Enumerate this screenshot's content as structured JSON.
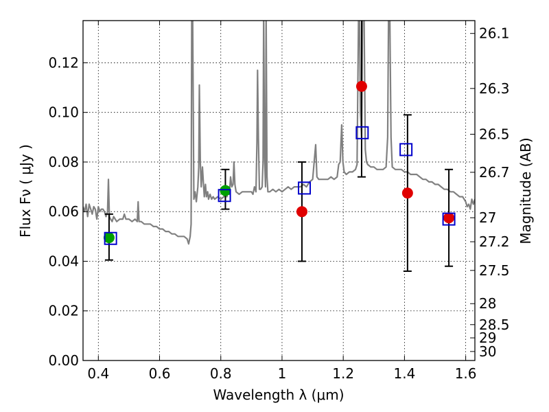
{
  "chart_data": {
    "type": "scatter",
    "xlabel": "Wavelength  λ (μm)",
    "ylabel": "Flux  Fν  ( μJy )",
    "ylabel_right": "Magnitude (AB)",
    "xlim": [
      0.35,
      1.63
    ],
    "ylim": [
      0.0,
      0.137
    ],
    "grid": true,
    "x_ticks": [
      {
        "value": 0.4,
        "label": "0.4"
      },
      {
        "value": 0.6,
        "label": "0.6"
      },
      {
        "value": 0.8,
        "label": "0.8"
      },
      {
        "value": 1.0,
        "label": "1"
      },
      {
        "value": 1.2,
        "label": "1.2"
      },
      {
        "value": 1.4,
        "label": "1.4"
      },
      {
        "value": 1.6,
        "label": "1.6"
      }
    ],
    "y_ticks": [
      {
        "value": 0.0,
        "label": "0.00"
      },
      {
        "value": 0.02,
        "label": "0.02"
      },
      {
        "value": 0.04,
        "label": "0.04"
      },
      {
        "value": 0.06,
        "label": "0.06"
      },
      {
        "value": 0.08,
        "label": "0.08"
      },
      {
        "value": 0.1,
        "label": "0.10"
      },
      {
        "value": 0.12,
        "label": "0.12"
      }
    ],
    "mag_ticks": [
      {
        "value": 26.1,
        "label": "26.1"
      },
      {
        "value": 26.3,
        "label": "26.3"
      },
      {
        "value": 26.5,
        "label": "26.5"
      },
      {
        "value": 26.7,
        "label": "26.7"
      },
      {
        "value": 27.0,
        "label": "27"
      },
      {
        "value": 27.2,
        "label": "27.2"
      },
      {
        "value": 27.5,
        "label": "27.5"
      },
      {
        "value": 28.0,
        "label": "28"
      },
      {
        "value": 28.5,
        "label": "28.5"
      },
      {
        "value": 29.0,
        "label": "29"
      },
      {
        "value": 30.0,
        "label": "30"
      }
    ],
    "colors": {
      "spectrum": "#808080",
      "green": "#00a000",
      "red": "#e00000",
      "model_box": "#0000cc",
      "errorbar": "#000000"
    },
    "spectrum": [
      [
        0.35,
        0.062
      ],
      [
        0.355,
        0.06
      ],
      [
        0.36,
        0.063
      ],
      [
        0.365,
        0.058
      ],
      [
        0.37,
        0.063
      ],
      [
        0.375,
        0.061
      ],
      [
        0.38,
        0.059
      ],
      [
        0.385,
        0.062
      ],
      [
        0.39,
        0.061
      ],
      [
        0.395,
        0.057
      ],
      [
        0.4,
        0.062
      ],
      [
        0.405,
        0.06
      ],
      [
        0.41,
        0.061
      ],
      [
        0.415,
        0.061
      ],
      [
        0.42,
        0.06
      ],
      [
        0.425,
        0.058
      ],
      [
        0.43,
        0.06
      ],
      [
        0.433,
        0.073
      ],
      [
        0.436,
        0.058
      ],
      [
        0.44,
        0.057
      ],
      [
        0.445,
        0.056
      ],
      [
        0.45,
        0.058
      ],
      [
        0.46,
        0.056
      ],
      [
        0.47,
        0.057
      ],
      [
        0.48,
        0.057
      ],
      [
        0.485,
        0.059
      ],
      [
        0.49,
        0.057
      ],
      [
        0.5,
        0.057
      ],
      [
        0.51,
        0.056
      ],
      [
        0.52,
        0.057
      ],
      [
        0.527,
        0.056
      ],
      [
        0.53,
        0.064
      ],
      [
        0.533,
        0.056
      ],
      [
        0.54,
        0.056
      ],
      [
        0.55,
        0.055
      ],
      [
        0.56,
        0.055
      ],
      [
        0.57,
        0.055
      ],
      [
        0.58,
        0.054
      ],
      [
        0.59,
        0.054
      ],
      [
        0.6,
        0.053
      ],
      [
        0.61,
        0.053
      ],
      [
        0.62,
        0.052
      ],
      [
        0.63,
        0.052
      ],
      [
        0.64,
        0.051
      ],
      [
        0.65,
        0.051
      ],
      [
        0.66,
        0.05
      ],
      [
        0.67,
        0.05
      ],
      [
        0.68,
        0.05
      ],
      [
        0.69,
        0.049
      ],
      [
        0.695,
        0.047
      ],
      [
        0.7,
        0.05
      ],
      [
        0.703,
        0.055
      ],
      [
        0.705,
        0.14
      ],
      [
        0.708,
        0.14
      ],
      [
        0.712,
        0.065
      ],
      [
        0.716,
        0.068
      ],
      [
        0.72,
        0.064
      ],
      [
        0.725,
        0.07
      ],
      [
        0.728,
        0.078
      ],
      [
        0.73,
        0.111
      ],
      [
        0.733,
        0.08
      ],
      [
        0.736,
        0.07
      ],
      [
        0.74,
        0.078
      ],
      [
        0.743,
        0.072
      ],
      [
        0.746,
        0.066
      ],
      [
        0.75,
        0.071
      ],
      [
        0.753,
        0.066
      ],
      [
        0.757,
        0.068
      ],
      [
        0.76,
        0.065
      ],
      [
        0.765,
        0.067
      ],
      [
        0.77,
        0.065
      ],
      [
        0.775,
        0.066
      ],
      [
        0.78,
        0.065
      ],
      [
        0.79,
        0.066
      ],
      [
        0.8,
        0.065
      ],
      [
        0.81,
        0.066
      ],
      [
        0.815,
        0.068
      ],
      [
        0.82,
        0.066
      ],
      [
        0.825,
        0.07
      ],
      [
        0.828,
        0.067
      ],
      [
        0.832,
        0.074
      ],
      [
        0.836,
        0.07
      ],
      [
        0.84,
        0.071
      ],
      [
        0.843,
        0.08
      ],
      [
        0.846,
        0.071
      ],
      [
        0.85,
        0.068
      ],
      [
        0.86,
        0.067
      ],
      [
        0.87,
        0.068
      ],
      [
        0.88,
        0.068
      ],
      [
        0.89,
        0.068
      ],
      [
        0.9,
        0.068
      ],
      [
        0.905,
        0.067
      ],
      [
        0.91,
        0.07
      ],
      [
        0.915,
        0.068
      ],
      [
        0.918,
        0.088
      ],
      [
        0.92,
        0.117
      ],
      [
        0.923,
        0.089
      ],
      [
        0.926,
        0.069
      ],
      [
        0.93,
        0.069
      ],
      [
        0.935,
        0.07
      ],
      [
        0.938,
        0.08
      ],
      [
        0.94,
        0.14
      ],
      [
        0.943,
        0.082
      ],
      [
        0.946,
        0.07
      ],
      [
        0.948,
        0.14
      ],
      [
        0.951,
        0.074
      ],
      [
        0.954,
        0.068
      ],
      [
        0.96,
        0.068
      ],
      [
        0.97,
        0.069
      ],
      [
        0.98,
        0.068
      ],
      [
        0.99,
        0.069
      ],
      [
        1.0,
        0.068
      ],
      [
        1.01,
        0.069
      ],
      [
        1.02,
        0.07
      ],
      [
        1.03,
        0.069
      ],
      [
        1.04,
        0.07
      ],
      [
        1.05,
        0.07
      ],
      [
        1.06,
        0.07
      ],
      [
        1.07,
        0.071
      ],
      [
        1.08,
        0.07
      ],
      [
        1.09,
        0.072
      ],
      [
        1.1,
        0.073
      ],
      [
        1.105,
        0.08
      ],
      [
        1.11,
        0.087
      ],
      [
        1.114,
        0.074
      ],
      [
        1.12,
        0.073
      ],
      [
        1.13,
        0.073
      ],
      [
        1.14,
        0.073
      ],
      [
        1.15,
        0.073
      ],
      [
        1.16,
        0.074
      ],
      [
        1.17,
        0.073
      ],
      [
        1.18,
        0.074
      ],
      [
        1.185,
        0.079
      ],
      [
        1.19,
        0.08
      ],
      [
        1.195,
        0.095
      ],
      [
        1.199,
        0.08
      ],
      [
        1.203,
        0.076
      ],
      [
        1.21,
        0.075
      ],
      [
        1.22,
        0.076
      ],
      [
        1.23,
        0.076
      ],
      [
        1.24,
        0.077
      ],
      [
        1.245,
        0.079
      ],
      [
        1.25,
        0.14
      ],
      [
        1.253,
        0.14
      ],
      [
        1.256,
        0.1
      ],
      [
        1.26,
        0.09
      ],
      [
        1.263,
        0.14
      ],
      [
        1.268,
        0.14
      ],
      [
        1.272,
        0.085
      ],
      [
        1.276,
        0.08
      ],
      [
        1.28,
        0.079
      ],
      [
        1.29,
        0.078
      ],
      [
        1.3,
        0.078
      ],
      [
        1.31,
        0.077
      ],
      [
        1.32,
        0.077
      ],
      [
        1.33,
        0.077
      ],
      [
        1.34,
        0.078
      ],
      [
        1.345,
        0.09
      ],
      [
        1.348,
        0.14
      ],
      [
        1.352,
        0.14
      ],
      [
        1.356,
        0.09
      ],
      [
        1.36,
        0.078
      ],
      [
        1.37,
        0.077
      ],
      [
        1.38,
        0.077
      ],
      [
        1.39,
        0.077
      ],
      [
        1.4,
        0.076
      ],
      [
        1.41,
        0.076
      ],
      [
        1.42,
        0.075
      ],
      [
        1.43,
        0.075
      ],
      [
        1.44,
        0.075
      ],
      [
        1.45,
        0.074
      ],
      [
        1.46,
        0.073
      ],
      [
        1.47,
        0.073
      ],
      [
        1.48,
        0.072
      ],
      [
        1.49,
        0.072
      ],
      [
        1.5,
        0.071
      ],
      [
        1.51,
        0.071
      ],
      [
        1.52,
        0.07
      ],
      [
        1.53,
        0.069
      ],
      [
        1.54,
        0.069
      ],
      [
        1.55,
        0.068
      ],
      [
        1.56,
        0.068
      ],
      [
        1.57,
        0.067
      ],
      [
        1.58,
        0.066
      ],
      [
        1.59,
        0.066
      ],
      [
        1.6,
        0.064
      ],
      [
        1.605,
        0.062
      ],
      [
        1.61,
        0.063
      ],
      [
        1.615,
        0.061
      ],
      [
        1.62,
        0.065
      ],
      [
        1.625,
        0.063
      ],
      [
        1.63,
        0.065
      ]
    ],
    "observed_points": [
      {
        "x": 0.435,
        "y": 0.0495,
        "color": "green",
        "yerr_low": 0.0405,
        "yerr_high": 0.059
      },
      {
        "x": 0.815,
        "y": 0.0685,
        "color": "green",
        "yerr_low": 0.061,
        "yerr_high": 0.077
      },
      {
        "x": 1.065,
        "y": 0.06,
        "color": "red",
        "yerr_low": 0.04,
        "yerr_high": 0.08
      },
      {
        "x": 1.26,
        "y": 0.1105,
        "color": "red",
        "yerr_low": 0.074,
        "yerr_high": 0.14
      },
      {
        "x": 1.41,
        "y": 0.0675,
        "color": "red",
        "yerr_low": 0.036,
        "yerr_high": 0.099
      },
      {
        "x": 1.545,
        "y": 0.0575,
        "color": "red",
        "yerr_low": 0.038,
        "yerr_high": 0.077
      }
    ],
    "model_points": [
      {
        "x": 0.44,
        "y": 0.0492
      },
      {
        "x": 0.812,
        "y": 0.0665
      },
      {
        "x": 1.073,
        "y": 0.0695
      },
      {
        "x": 1.262,
        "y": 0.0918
      },
      {
        "x": 1.405,
        "y": 0.085
      },
      {
        "x": 1.545,
        "y": 0.057
      }
    ]
  }
}
